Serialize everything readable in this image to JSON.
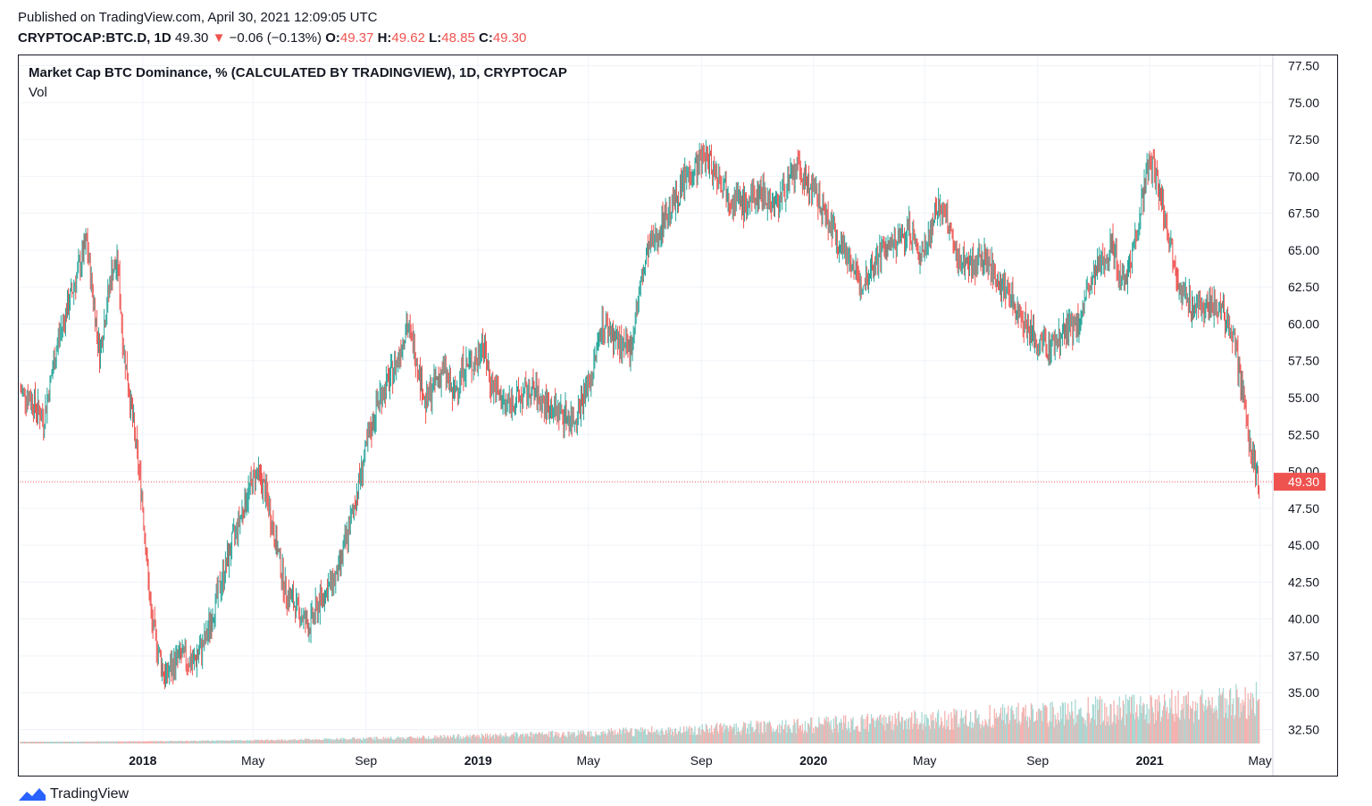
{
  "header": {
    "published": "Published on TradingView.com, April 30, 2021 12:09:05 UTC",
    "symbol": "CRYPTOCAP:BTC.D, 1D",
    "last": "49.30",
    "change": "−0.06 (−0.13%)",
    "o_label": "O:",
    "o_value": "49.37",
    "h_label": "H:",
    "h_value": "49.62",
    "l_label": "L:",
    "l_value": "48.85",
    "c_label": "C:",
    "c_value": "49.30",
    "down_arrow": "▼"
  },
  "pane": {
    "title": "Market Cap BTC Dominance, % (CALCULATED BY TRADINGVIEW), 1D, CRYPTOCAP",
    "indicator": "Vol"
  },
  "footer": {
    "brand": "TradingView"
  },
  "colors": {
    "up": "#26a69a",
    "down": "#ef5350",
    "grid": "#f0f3fa",
    "text": "#131722"
  },
  "chart_data": {
    "type": "line",
    "price_label": "49.30",
    "y_ticks": [
      "77.50",
      "75.00",
      "72.50",
      "70.00",
      "67.50",
      "65.00",
      "62.50",
      "60.00",
      "57.50",
      "55.00",
      "52.50",
      "50.00",
      "47.50",
      "45.00",
      "42.50",
      "40.00",
      "37.50",
      "35.00",
      "32.50"
    ],
    "ylim": [
      31.5,
      78.2
    ],
    "x_ticks": [
      {
        "label": "2018",
        "date": "2018-01-01",
        "bold": true
      },
      {
        "label": "May",
        "date": "2018-05-01",
        "bold": false
      },
      {
        "label": "Sep",
        "date": "2018-09-01",
        "bold": false
      },
      {
        "label": "2019",
        "date": "2019-01-01",
        "bold": true
      },
      {
        "label": "May",
        "date": "2019-05-01",
        "bold": false
      },
      {
        "label": "Sep",
        "date": "2019-09-01",
        "bold": false
      },
      {
        "label": "2020",
        "date": "2020-01-01",
        "bold": true
      },
      {
        "label": "May",
        "date": "2020-05-01",
        "bold": false
      },
      {
        "label": "Sep",
        "date": "2020-09-01",
        "bold": false
      },
      {
        "label": "2021",
        "date": "2021-01-01",
        "bold": true
      },
      {
        "label": "May",
        "date": "2021-05-01",
        "bold": false
      }
    ],
    "xlim": [
      "2017-08-20",
      "2021-05-15"
    ],
    "series": [
      {
        "values": [
          [
            "2017-08-20",
            55.5
          ],
          [
            "2017-09-01",
            55.0
          ],
          [
            "2017-09-15",
            53.5
          ],
          [
            "2017-10-01",
            59.0
          ],
          [
            "2017-10-20",
            63.0
          ],
          [
            "2017-11-01",
            65.5
          ],
          [
            "2017-11-15",
            58.0
          ],
          [
            "2017-11-28",
            63.5
          ],
          [
            "2017-12-05",
            64.0
          ],
          [
            "2017-12-10",
            59.0
          ],
          [
            "2017-12-20",
            54.0
          ],
          [
            "2017-12-31",
            48.5
          ],
          [
            "2018-01-10",
            40.0
          ],
          [
            "2018-01-25",
            36.0
          ],
          [
            "2018-02-10",
            37.5
          ],
          [
            "2018-02-25",
            37.0
          ],
          [
            "2018-03-10",
            38.5
          ],
          [
            "2018-03-25",
            42.0
          ],
          [
            "2018-04-10",
            45.5
          ],
          [
            "2018-04-25",
            48.5
          ],
          [
            "2018-05-05",
            50.0
          ],
          [
            "2018-05-15",
            48.5
          ],
          [
            "2018-05-25",
            45.5
          ],
          [
            "2018-06-05",
            42.0
          ],
          [
            "2018-06-20",
            40.5
          ],
          [
            "2018-07-01",
            39.5
          ],
          [
            "2018-07-15",
            41.5
          ],
          [
            "2018-08-01",
            43.0
          ],
          [
            "2018-08-15",
            46.5
          ],
          [
            "2018-08-25",
            49.5
          ],
          [
            "2018-09-05",
            52.5
          ],
          [
            "2018-09-15",
            55.0
          ],
          [
            "2018-09-25",
            56.0
          ],
          [
            "2018-10-05",
            57.5
          ],
          [
            "2018-10-15",
            60.0
          ],
          [
            "2018-10-25",
            58.0
          ],
          [
            "2018-11-05",
            54.5
          ],
          [
            "2018-11-15",
            56.0
          ],
          [
            "2018-11-25",
            57.0
          ],
          [
            "2018-12-05",
            55.0
          ],
          [
            "2018-12-15",
            57.0
          ],
          [
            "2018-12-31",
            57.5
          ],
          [
            "2019-01-05",
            59.0
          ],
          [
            "2019-01-15",
            56.0
          ],
          [
            "2019-01-30",
            54.5
          ],
          [
            "2019-02-15",
            55.0
          ],
          [
            "2019-03-01",
            55.5
          ],
          [
            "2019-03-15",
            54.5
          ],
          [
            "2019-04-01",
            54.0
          ],
          [
            "2019-04-15",
            53.5
          ],
          [
            "2019-04-25",
            55.0
          ],
          [
            "2019-05-05",
            56.5
          ],
          [
            "2019-05-15",
            60.0
          ],
          [
            "2019-05-25",
            59.5
          ],
          [
            "2019-06-05",
            58.5
          ],
          [
            "2019-06-15",
            58.0
          ],
          [
            "2019-06-25",
            62.0
          ],
          [
            "2019-07-05",
            65.0
          ],
          [
            "2019-07-15",
            66.0
          ],
          [
            "2019-07-25",
            67.5
          ],
          [
            "2019-08-05",
            68.5
          ],
          [
            "2019-08-15",
            70.0
          ],
          [
            "2019-08-25",
            70.5
          ],
          [
            "2019-09-05",
            71.5
          ],
          [
            "2019-09-15",
            70.5
          ],
          [
            "2019-09-25",
            69.5
          ],
          [
            "2019-10-05",
            68.5
          ],
          [
            "2019-10-20",
            68.0
          ],
          [
            "2019-11-05",
            69.0
          ],
          [
            "2019-11-20",
            68.0
          ],
          [
            "2019-12-05",
            69.5
          ],
          [
            "2019-12-15",
            70.5
          ],
          [
            "2019-12-31",
            69.0
          ],
          [
            "2020-01-10",
            68.0
          ],
          [
            "2020-01-25",
            66.0
          ],
          [
            "2020-02-10",
            64.5
          ],
          [
            "2020-02-20",
            62.5
          ],
          [
            "2020-03-01",
            63.5
          ],
          [
            "2020-03-15",
            65.0
          ],
          [
            "2020-04-01",
            65.5
          ],
          [
            "2020-04-15",
            66.5
          ],
          [
            "2020-04-25",
            64.5
          ],
          [
            "2020-05-05",
            66.0
          ],
          [
            "2020-05-15",
            68.0
          ],
          [
            "2020-05-25",
            67.0
          ],
          [
            "2020-06-05",
            64.5
          ],
          [
            "2020-06-20",
            64.0
          ],
          [
            "2020-07-05",
            64.5
          ],
          [
            "2020-07-20",
            63.0
          ],
          [
            "2020-08-05",
            61.5
          ],
          [
            "2020-08-20",
            60.0
          ],
          [
            "2020-09-01",
            58.5
          ],
          [
            "2020-09-15",
            58.5
          ],
          [
            "2020-10-01",
            59.5
          ],
          [
            "2020-10-15",
            60.0
          ],
          [
            "2020-10-25",
            62.0
          ],
          [
            "2020-11-05",
            63.5
          ],
          [
            "2020-11-20",
            65.5
          ],
          [
            "2020-12-01",
            63.0
          ],
          [
            "2020-12-10",
            64.0
          ],
          [
            "2020-12-20",
            67.0
          ],
          [
            "2020-12-31",
            71.0
          ],
          [
            "2021-01-05",
            70.5
          ],
          [
            "2021-01-15",
            68.0
          ],
          [
            "2021-01-25",
            65.0
          ],
          [
            "2021-02-05",
            62.0
          ],
          [
            "2021-02-20",
            61.0
          ],
          [
            "2021-03-05",
            61.5
          ],
          [
            "2021-03-20",
            61.0
          ],
          [
            "2021-04-01",
            59.5
          ],
          [
            "2021-04-10",
            56.0
          ],
          [
            "2021-04-18",
            52.5
          ],
          [
            "2021-04-25",
            50.5
          ],
          [
            "2021-04-30",
            49.3
          ]
        ]
      }
    ]
  }
}
